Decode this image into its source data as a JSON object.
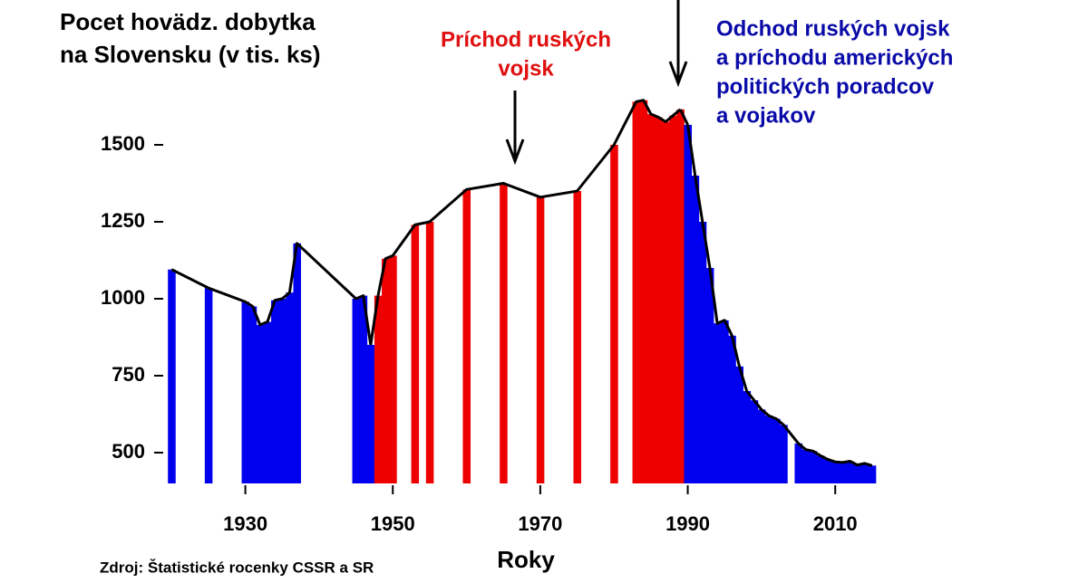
{
  "chart_data": {
    "type": "bar-line",
    "title": [
      "Pocet hovädz. dobytka",
      "na Slovensku (v tis. ks)"
    ],
    "x_label": "Roky",
    "source": "Zdroj: Štatistické rocenky CSSR a SR",
    "annotations": [
      {
        "lines": [
          "Príchod ruských",
          "vojsk"
        ],
        "color": "#e01010"
      },
      {
        "lines": [
          "Odchod ruských vojsk",
          "a príchodu amerických",
          "politických poradcov",
          "a vojakov"
        ],
        "color": "#0a0aa8"
      }
    ],
    "series": [
      {
        "color": "#0000ee",
        "x": [
          1920,
          1925,
          1930,
          1931,
          1932,
          1933,
          1934,
          1935,
          1936,
          1937,
          1945,
          1946,
          1947
        ],
        "values": [
          1095,
          1035,
          990,
          975,
          915,
          925,
          995,
          1000,
          1020,
          1180,
          1000,
          1010,
          850
        ]
      },
      {
        "color": "#ee0000",
        "x": [
          1948,
          1949,
          1950,
          1953,
          1955,
          1960,
          1965,
          1970,
          1975,
          1980,
          1983,
          1984,
          1985,
          1986,
          1987,
          1988,
          1989
        ],
        "values": [
          1010,
          1130,
          1140,
          1240,
          1250,
          1355,
          1375,
          1330,
          1350,
          1500,
          1640,
          1645,
          1600,
          1590,
          1575,
          1595,
          1615
        ]
      },
      {
        "color": "#0000ee",
        "x": [
          1990,
          1991,
          1992,
          1993,
          1994,
          1995,
          1996,
          1997,
          1998,
          1999,
          2000,
          2001,
          2002,
          2003,
          2005,
          2006,
          2007,
          2008,
          2009,
          2010,
          2011,
          2012,
          2013,
          2014,
          2015
        ],
        "values": [
          1565,
          1400,
          1250,
          1100,
          920,
          930,
          880,
          780,
          700,
          670,
          640,
          620,
          610,
          590,
          530,
          510,
          505,
          490,
          478,
          470,
          468,
          472,
          460,
          465,
          458
        ]
      }
    ],
    "xlim": [
      1918,
      2016
    ],
    "xticks": [
      1930,
      1950,
      1970,
      1990,
      2010
    ],
    "ylim": [
      400,
      1700
    ],
    "yticks": [
      500,
      750,
      1000,
      1250,
      1500
    ]
  }
}
